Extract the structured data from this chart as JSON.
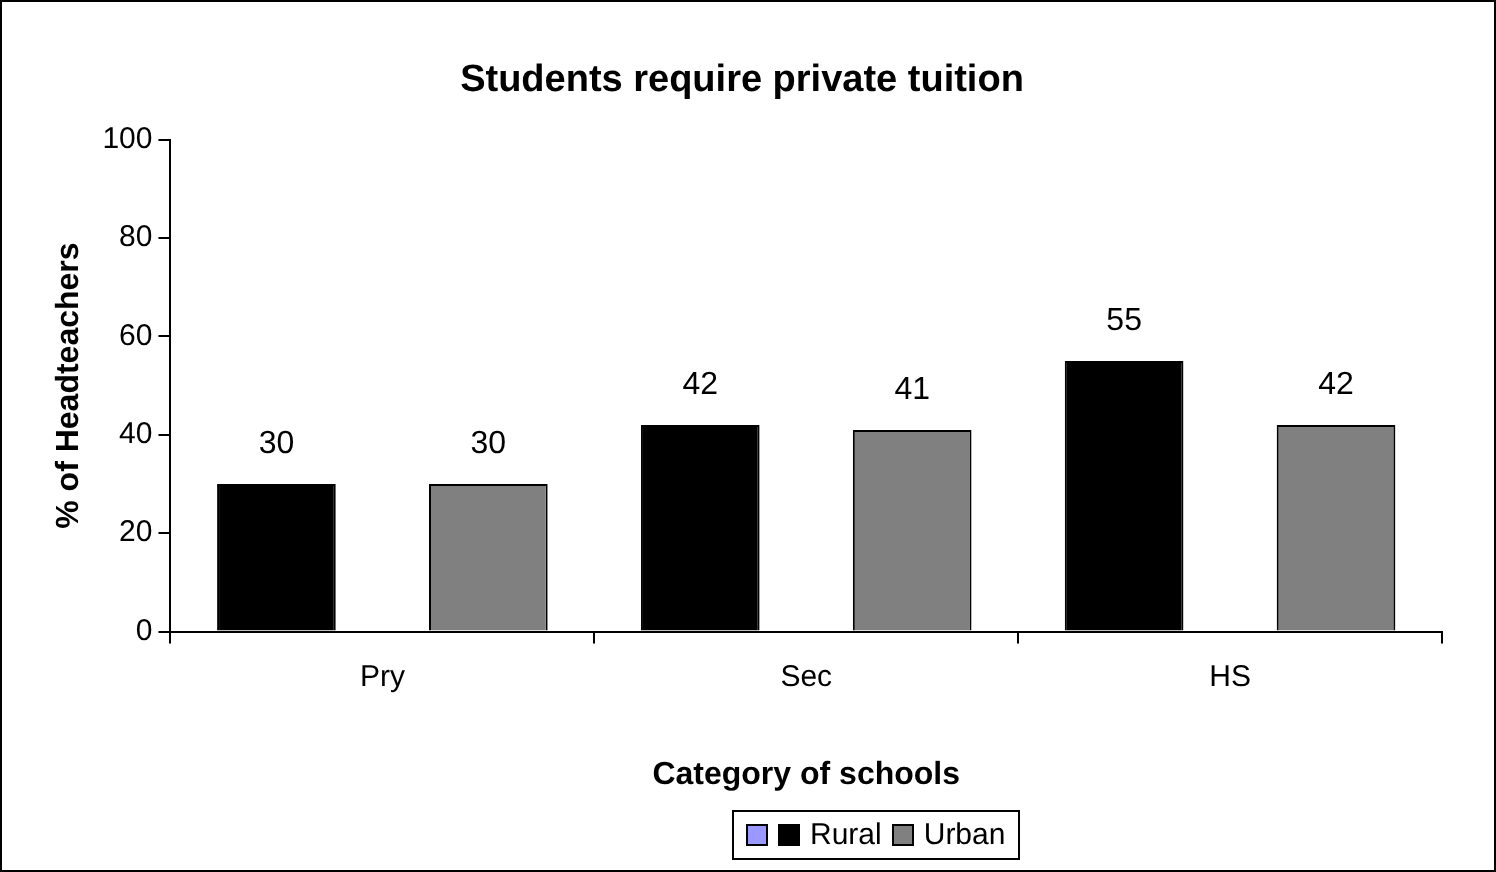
{
  "chart_data": {
    "type": "bar",
    "title": "Students require private tuition",
    "xlabel": "Category of schools",
    "ylabel": "% of Headteachers",
    "categories": [
      "Pry",
      "Sec",
      "HS"
    ],
    "series": [
      {
        "name": "Rural",
        "color": "#000000",
        "values": [
          30,
          42,
          55
        ]
      },
      {
        "name": "Urban",
        "color": "#808080",
        "values": [
          30,
          41,
          42
        ]
      }
    ],
    "ylim": [
      0,
      100
    ],
    "yticks": [
      0,
      20,
      40,
      60,
      80,
      100
    ],
    "grid": false,
    "legend": "bottom",
    "data_labels": true
  }
}
